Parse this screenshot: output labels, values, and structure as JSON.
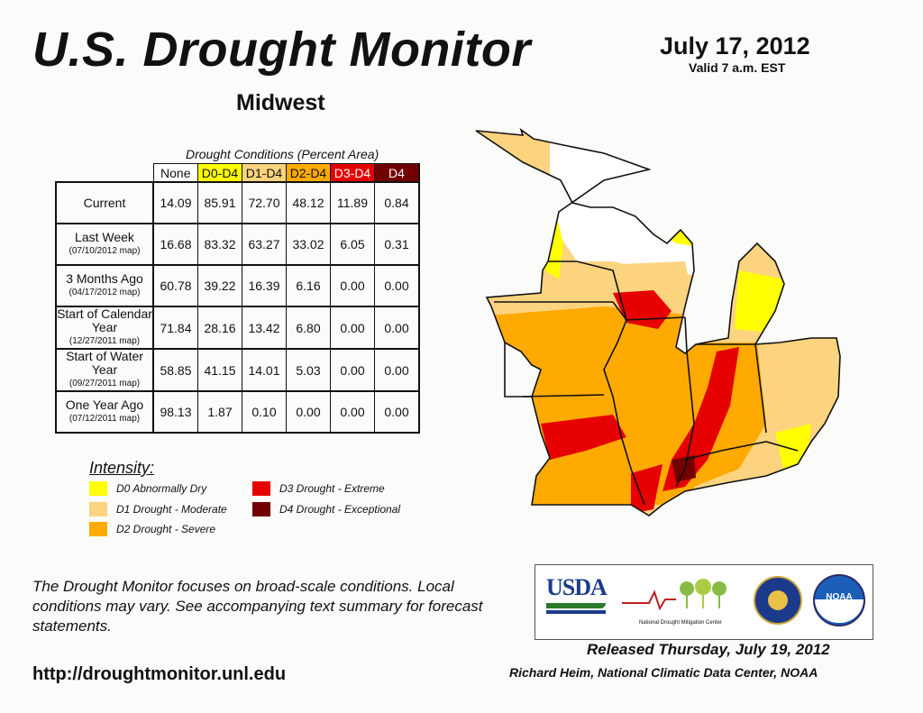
{
  "header": {
    "title": "U.S. Drought Monitor",
    "region": "Midwest",
    "date": "July 17, 2012",
    "valid": "Valid 7 a.m. EST"
  },
  "table": {
    "caption": "Drought Conditions (Percent Area)",
    "columns": [
      "None",
      "D0-D4",
      "D1-D4",
      "D2-D4",
      "D3-D4",
      "D4"
    ],
    "column_colors": [
      "#ffffff",
      "#ffff00",
      "#fcd37f",
      "#ffaa00",
      "#e60000",
      "#730000"
    ],
    "rows": [
      {
        "label": "Current",
        "sub": "",
        "values": [
          "14.09",
          "85.91",
          "72.70",
          "48.12",
          "11.89",
          "0.84"
        ]
      },
      {
        "label": "Last Week",
        "sub": "(07/10/2012 map)",
        "values": [
          "16.68",
          "83.32",
          "63.27",
          "33.02",
          "6.05",
          "0.31"
        ]
      },
      {
        "label": "3 Months Ago",
        "sub": "(04/17/2012 map)",
        "values": [
          "60.78",
          "39.22",
          "16.39",
          "6.16",
          "0.00",
          "0.00"
        ]
      },
      {
        "label": "Start of Calendar Year",
        "sub": "(12/27/2011 map)",
        "values": [
          "71.84",
          "28.16",
          "13.42",
          "6.80",
          "0.00",
          "0.00"
        ]
      },
      {
        "label": "Start of Water Year",
        "sub": "(09/27/2011 map)",
        "values": [
          "58.85",
          "41.15",
          "14.01",
          "5.03",
          "0.00",
          "0.00"
        ]
      },
      {
        "label": "One Year Ago",
        "sub": "(07/12/2011 map)",
        "values": [
          "98.13",
          "1.87",
          "0.10",
          "0.00",
          "0.00",
          "0.00"
        ]
      }
    ]
  },
  "legend": {
    "title": "Intensity:",
    "items": [
      {
        "label": "D0 Abnormally Dry",
        "color": "#ffff00"
      },
      {
        "label": "D1 Drought - Moderate",
        "color": "#fcd37f"
      },
      {
        "label": "D2 Drought - Severe",
        "color": "#ffaa00"
      },
      {
        "label": "D3 Drought - Extreme",
        "color": "#e60000"
      },
      {
        "label": "D4 Drought - Exceptional",
        "color": "#730000"
      }
    ]
  },
  "note": "The Drought Monitor focuses on broad-scale conditions. Local conditions may vary. See accompanying text summary for forecast statements.",
  "url": "http://droughtmonitor.unl.edu",
  "released": "Released Thursday, July 19, 2012",
  "author": "Richard Heim, National Climatic Data Center, NOAA",
  "logos": {
    "usda": "USDA",
    "ndmc": "National Drought Mitigation Center",
    "noaa": "NOAA"
  }
}
